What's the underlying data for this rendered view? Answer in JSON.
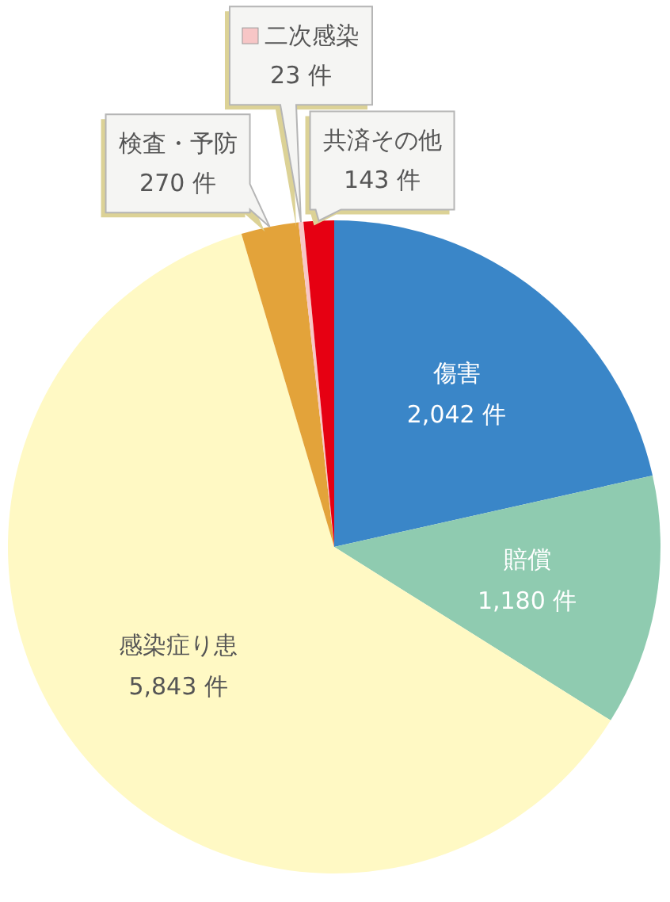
{
  "chart_data": {
    "type": "pie",
    "categories": [
      "傷害",
      "賠償",
      "感染症り患",
      "検査・予防",
      "二次感染",
      "共済その他"
    ],
    "values": [
      2042,
      1180,
      5843,
      270,
      23,
      143
    ],
    "colors": [
      "#3a86c8",
      "#8fcbb0",
      "#fff9c4",
      "#e3a33a",
      "#f7c6c6",
      "#e60012"
    ],
    "value_labels": [
      "2,042 件",
      "1,180 件",
      "5,843 件",
      "270 件",
      "23 件",
      "143 件"
    ]
  }
}
